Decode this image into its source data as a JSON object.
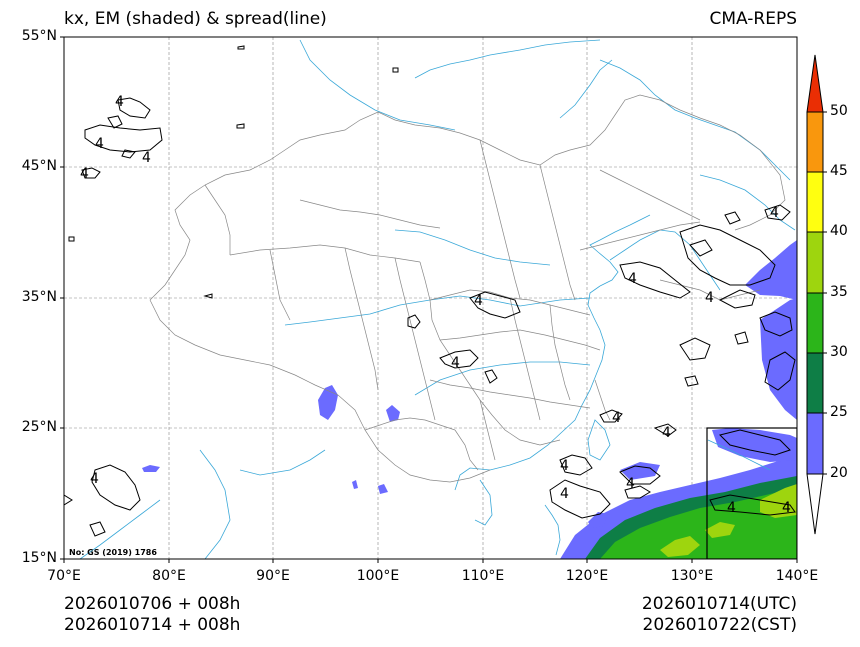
{
  "title": {
    "left": "kx, EM (shaded) & spread(line)",
    "right": "CMA-REPS"
  },
  "axes": {
    "y_labels": [
      "55°N",
      "45°N",
      "35°N",
      "25°N",
      "15°N"
    ],
    "x_labels": [
      "70°E",
      "80°E",
      "90°E",
      "100°E",
      "110°E",
      "120°E",
      "130°E",
      "140°E"
    ],
    "lat_range": [
      15,
      55
    ],
    "lon_range": [
      70,
      140
    ]
  },
  "colorbar": {
    "labels": [
      "20",
      "25",
      "30",
      "35",
      "40",
      "45",
      "50"
    ],
    "colors": [
      "#ffffff",
      "#6b6bff",
      "#0e7e46",
      "#2cb51a",
      "#9ed50e",
      "#ffff10",
      "#f9970d",
      "#ea2e04"
    ]
  },
  "contour_label": "4",
  "watermark": "No: GS (2019) 1786",
  "footer": {
    "left_line1": "2026010706  +  008h",
    "left_line2": "2026010714  +  008h",
    "right_line1": "2026010714(UTC)",
    "right_line2": "2026010722(CST)"
  }
}
